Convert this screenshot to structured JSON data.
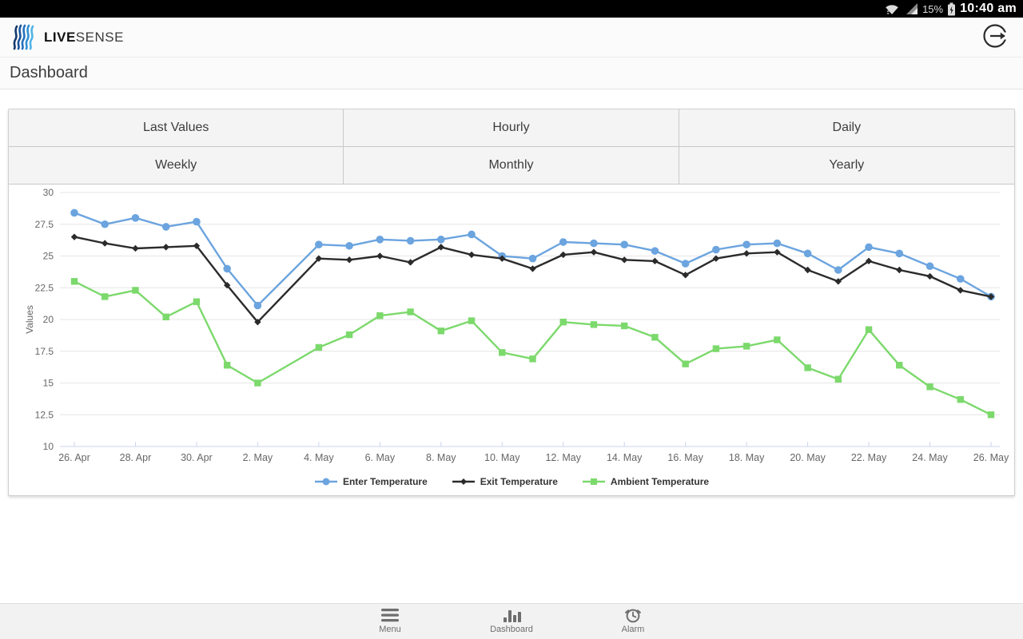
{
  "status_bar": {
    "battery_percent": "15%",
    "time": "10:40 am"
  },
  "header": {
    "brand_live": "LIVE",
    "brand_sense": "SENSE"
  },
  "page": {
    "title": "Dashboard"
  },
  "range_buttons": [
    "Last Values",
    "Hourly",
    "Daily",
    "Weekly",
    "Monthly",
    "Yearly"
  ],
  "chart_data": {
    "type": "line",
    "title": "",
    "xlabel": "",
    "ylabel": "Values",
    "ylim": [
      10,
      30
    ],
    "ytick_step": 2.5,
    "grid": true,
    "legend_position": "bottom",
    "x_tick_every": 2,
    "x": [
      "26. Apr",
      "27. Apr",
      "28. Apr",
      "29. Apr",
      "30. Apr",
      "1. May",
      "2. May",
      "3. May",
      "4. May",
      "5. May",
      "6. May",
      "7. May",
      "8. May",
      "9. May",
      "10. May",
      "11. May",
      "12. May",
      "13. May",
      "14. May",
      "15. May",
      "16. May",
      "17. May",
      "18. May",
      "19. May",
      "20. May",
      "21. May",
      "22. May",
      "23. May",
      "24. May",
      "25. May",
      "26. May"
    ],
    "series": [
      {
        "name": "Enter Temperature",
        "color": "#6BA4DF",
        "marker": "circle",
        "values": [
          28.4,
          27.5,
          28.0,
          27.3,
          27.7,
          24.0,
          21.1,
          null,
          25.9,
          25.8,
          26.3,
          26.2,
          26.3,
          26.7,
          25.0,
          24.8,
          26.1,
          26.0,
          25.9,
          25.4,
          24.4,
          25.5,
          25.9,
          26.0,
          25.2,
          23.9,
          25.7,
          25.2,
          24.2,
          23.2,
          21.8
        ]
      },
      {
        "name": "Exit Temperature",
        "color": "#2B2B2B",
        "marker": "diamond",
        "values": [
          26.5,
          26.0,
          25.6,
          25.7,
          25.8,
          22.7,
          19.8,
          null,
          24.8,
          24.7,
          25.0,
          24.5,
          25.7,
          25.1,
          24.8,
          24.0,
          25.1,
          25.3,
          24.7,
          24.6,
          23.5,
          24.8,
          25.2,
          25.3,
          23.9,
          23.0,
          24.6,
          23.9,
          23.4,
          22.3,
          21.8
        ]
      },
      {
        "name": "Ambient Temperature",
        "color": "#7CD96C",
        "marker": "square",
        "values": [
          23.0,
          21.8,
          22.3,
          20.2,
          21.4,
          16.4,
          15.0,
          null,
          17.8,
          18.8,
          20.3,
          20.6,
          19.1,
          19.9,
          17.4,
          16.9,
          19.8,
          19.6,
          19.5,
          18.6,
          16.5,
          17.7,
          17.9,
          18.4,
          16.2,
          15.3,
          19.2,
          16.4,
          14.7,
          13.7,
          12.5
        ]
      }
    ]
  },
  "bottom_nav": [
    {
      "label": "Menu",
      "icon": "menu-icon"
    },
    {
      "label": "Dashboard",
      "icon": "bar-chart-icon"
    },
    {
      "label": "Alarm",
      "icon": "alarm-icon"
    }
  ]
}
